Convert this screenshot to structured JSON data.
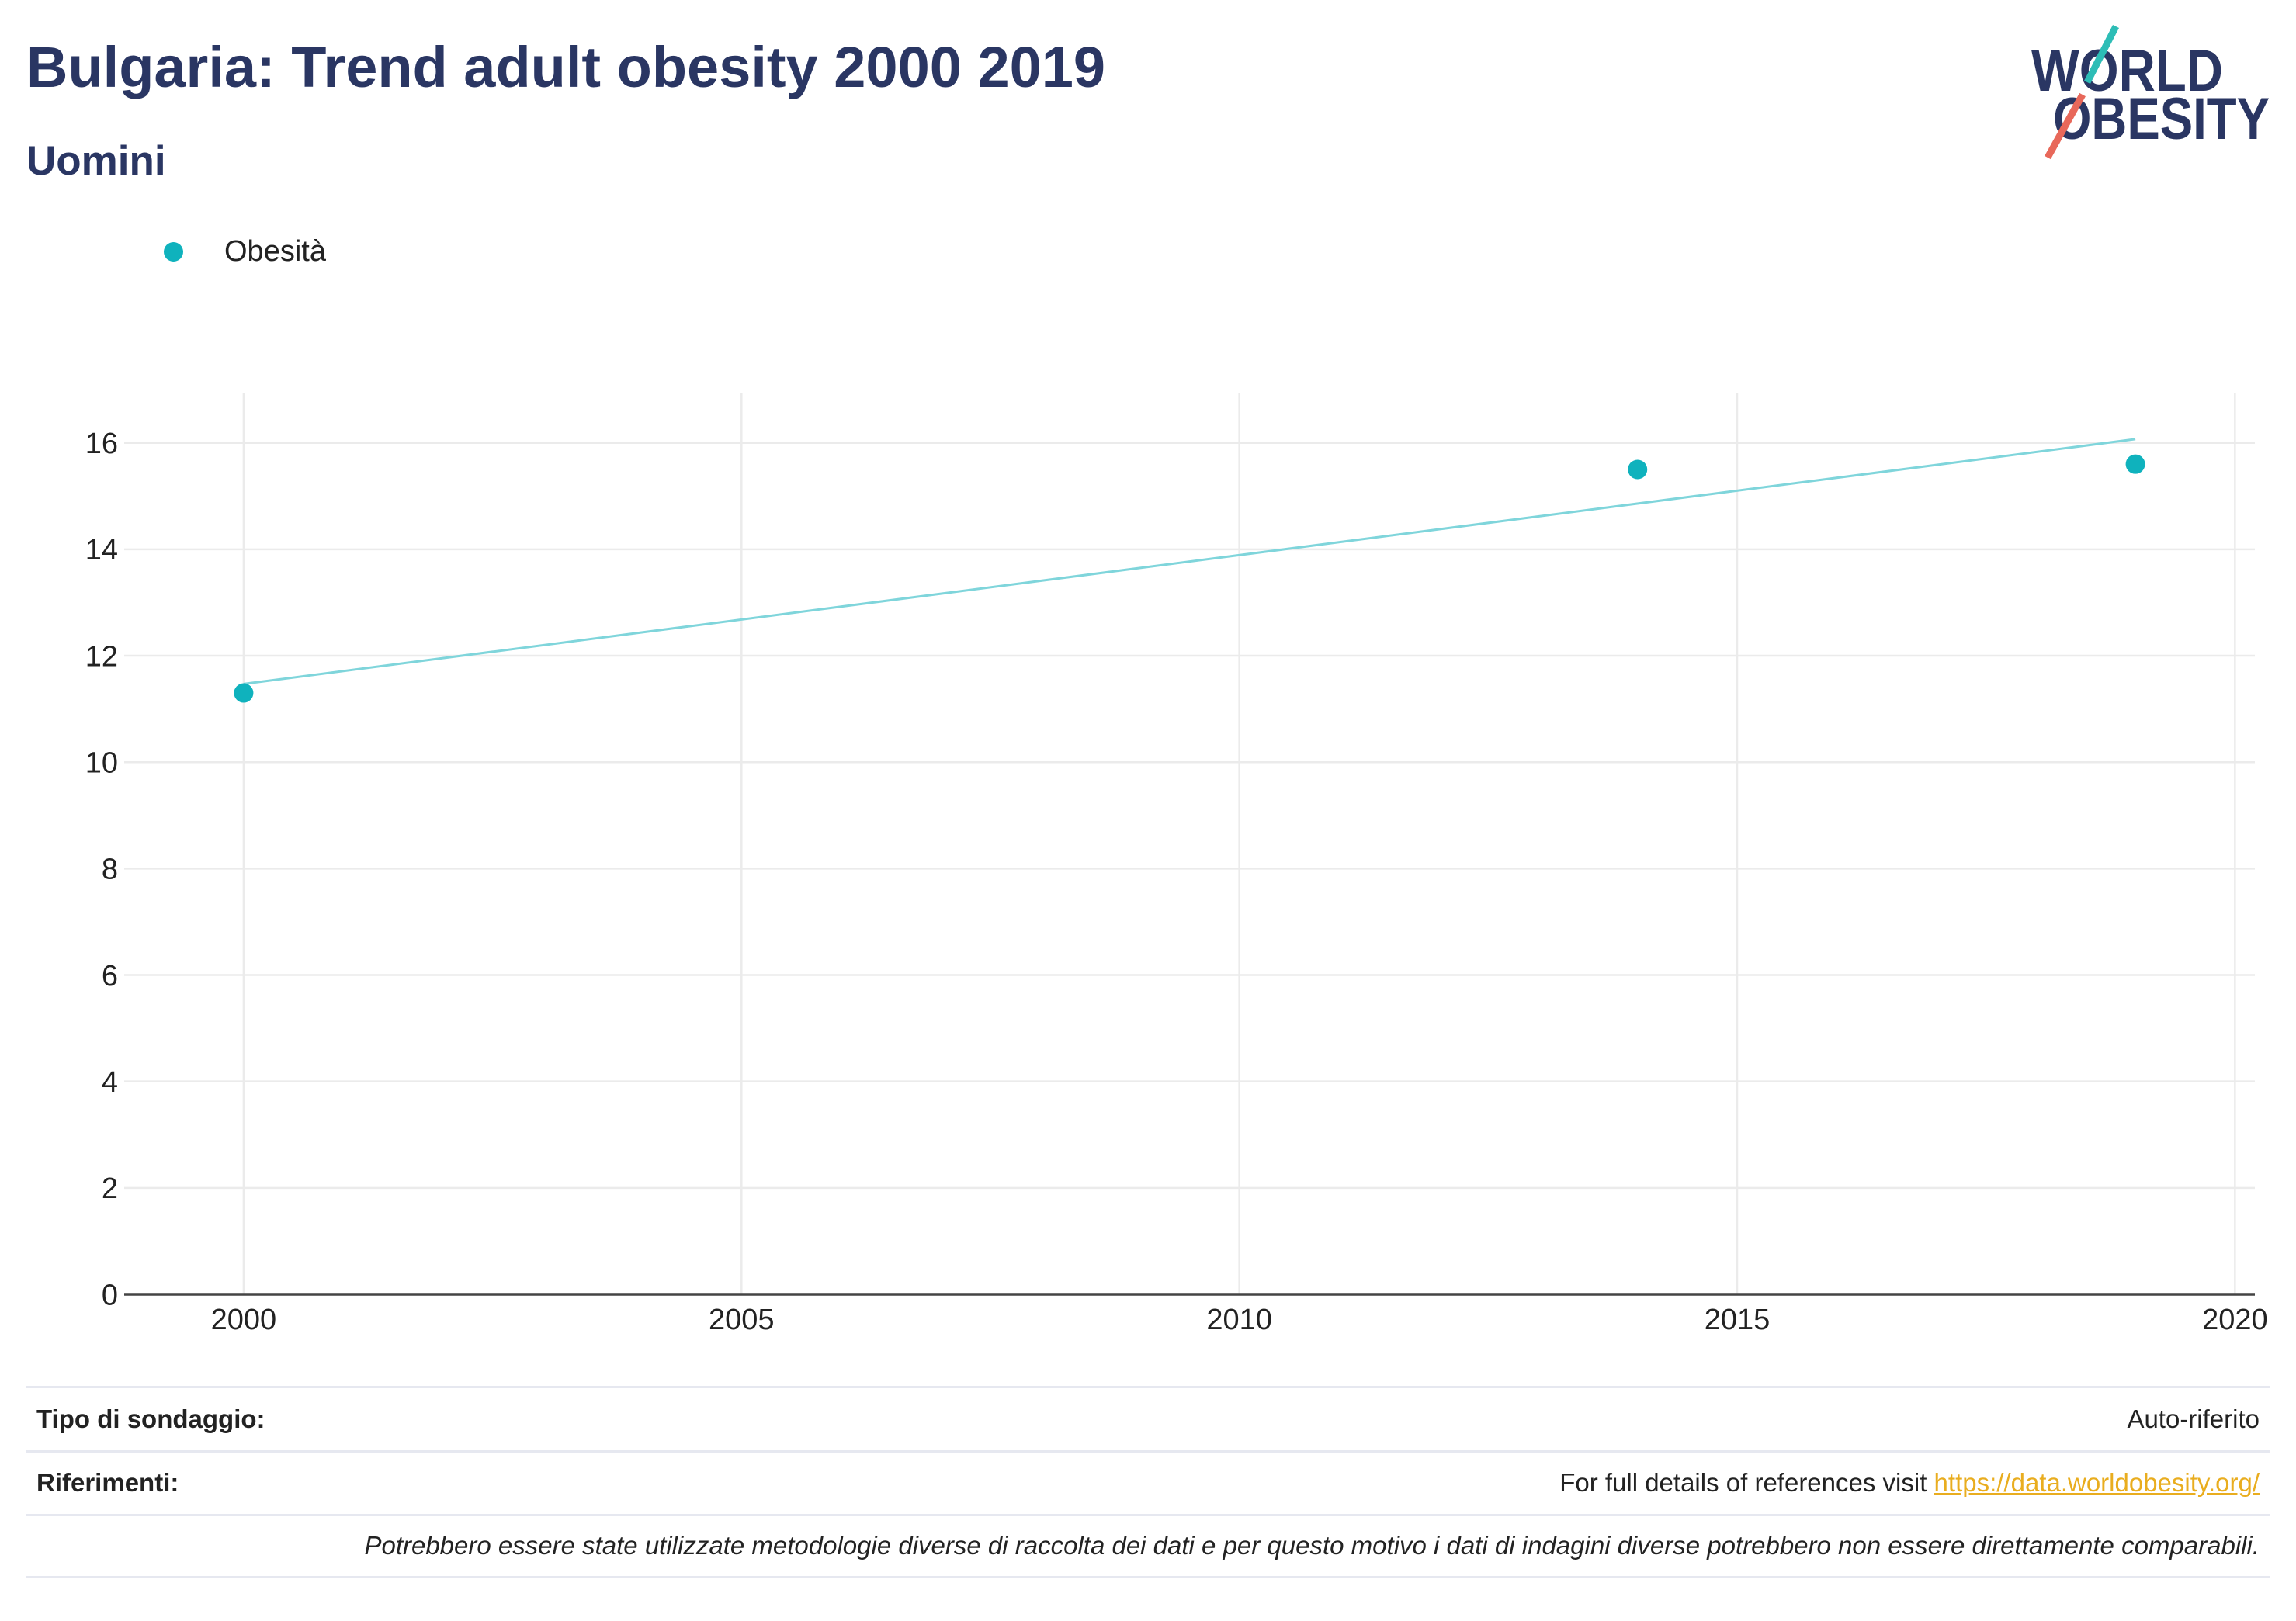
{
  "logo": {
    "line1": "WORLD",
    "line2": "OBESITY"
  },
  "colors": {
    "title": "#2a3663",
    "points": "#0fb2bd",
    "trend": "#7fd5db",
    "grid": "#ebebeb",
    "axis": "#444444",
    "link": "#e9ad1f",
    "logo_teal": "#2dbdb6",
    "logo_red": "#e8685a"
  },
  "chart_data": {
    "type": "scatter",
    "title": "Bulgaria: Trend adult obesity 2000 2019",
    "subtitle": "Uomini",
    "xlabel": "",
    "ylabel": "",
    "series": [
      {
        "name": "Obesità",
        "x": [
          2000,
          2014,
          2019
        ],
        "y": [
          11.3,
          15.5,
          15.6
        ]
      }
    ],
    "trendline": {
      "x": [
        2000,
        2019
      ],
      "y": [
        11.47,
        16.07
      ]
    },
    "xticks": [
      2000,
      2005,
      2010,
      2015,
      2020
    ],
    "yticks": [
      0,
      2,
      4,
      6,
      8,
      10,
      12,
      14,
      16
    ],
    "xlim": [
      1998.8,
      2020.2
    ],
    "ylim": [
      0,
      16.9
    ],
    "grid": true,
    "legend_position": "top-left"
  },
  "footer": {
    "survey_type_label": "Tipo di sondaggio:",
    "survey_type_value": "Auto-riferito",
    "references_label": "Riferimenti:",
    "references_text": "For full details of references visit ",
    "references_link": "https://data.worldobesity.org/",
    "note": "Potrebbero essere state utilizzate metodologie diverse di raccolta dei dati e per questo motivo i dati di indagini diverse potrebbero non essere direttamente comparabili."
  }
}
